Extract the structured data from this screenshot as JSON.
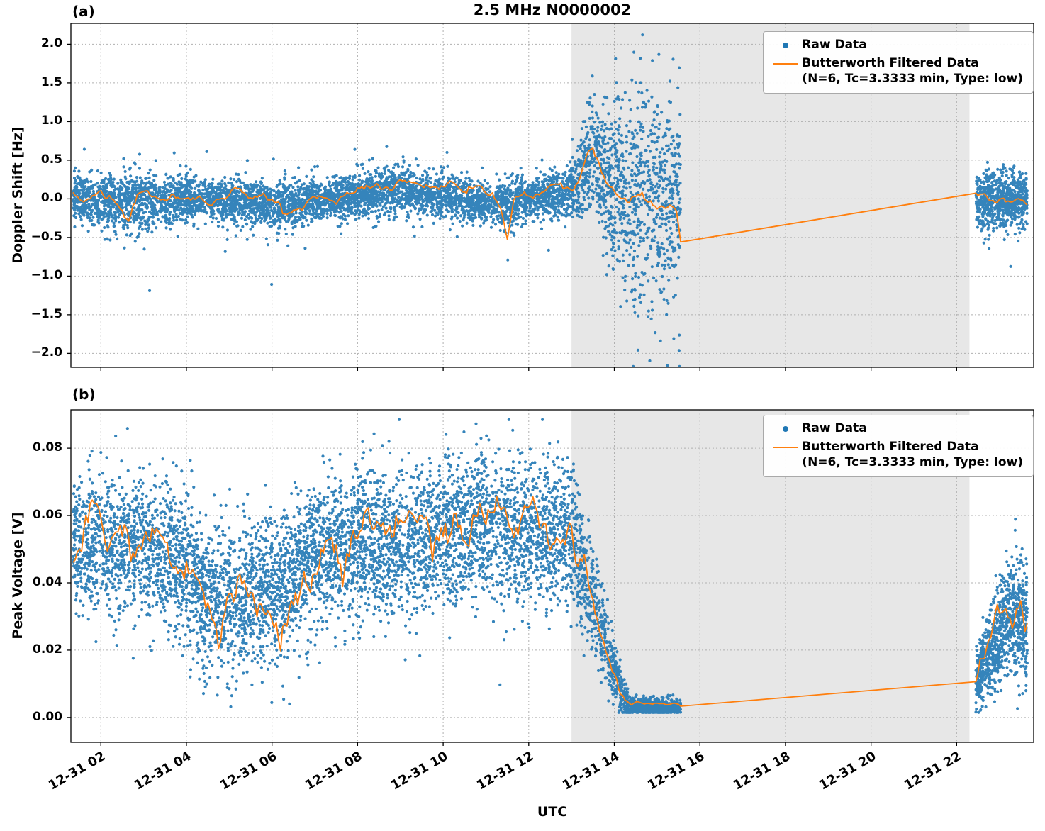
{
  "title": "2.5 MHz N0000002",
  "xlabel": "UTC",
  "colors": {
    "raw": "#1f77b4",
    "filtered": "#ff7f0e",
    "shade": "#e7e7e7",
    "grid": "#b0b0b0",
    "spine": "#000000"
  },
  "legend": {
    "raw_label": "Raw Data",
    "filtered_label": "Butterworth Filtered Data",
    "filtered_sub": "(N=6, Tc=3.3333 min, Type: low)"
  },
  "x_axis": {
    "range": [
      1.3,
      23.8
    ],
    "tick_times": [
      2,
      4,
      6,
      8,
      10,
      12,
      14,
      16,
      18,
      20,
      22
    ],
    "tick_labels": [
      "12-31 02",
      "12-31 04",
      "12-31 06",
      "12-31 08",
      "12-31 10",
      "12-31 12",
      "12-31 14",
      "12-31 16",
      "12-31 18",
      "12-31 20",
      "12-31 22"
    ]
  },
  "shade_span": [
    13.0,
    22.3
  ],
  "chart_data": [
    {
      "type": "scatter",
      "panel_label": "(a)",
      "ylabel": "Doppler Shift [Hz]",
      "ylim": [
        -2.18,
        2.27
      ],
      "clamp": [
        -2.17,
        2.26
      ],
      "yticks": [
        2.0,
        1.5,
        1.0,
        0.5,
        0.0,
        -0.5,
        -1.0,
        -1.5,
        -2.0
      ],
      "tick_decimals": 1,
      "raw": {
        "segments": [
          [
            1.35,
            15.55,
            6200
          ],
          [
            22.45,
            23.65,
            750
          ]
        ],
        "mean": [
          [
            1.35,
            0
          ],
          [
            2.6,
            -0.06
          ],
          [
            4,
            0
          ],
          [
            6.4,
            -0.07
          ],
          [
            7.5,
            0
          ],
          [
            8.8,
            0.1
          ],
          [
            10,
            0.04
          ],
          [
            11.45,
            -0.08
          ],
          [
            12.3,
            0.04
          ],
          [
            12.9,
            0.05
          ],
          [
            13.2,
            0.3
          ],
          [
            13.45,
            0.55
          ],
          [
            13.7,
            0.35
          ],
          [
            14,
            0.1
          ],
          [
            14.4,
            0
          ],
          [
            15.55,
            -0.05
          ],
          [
            22.45,
            0
          ],
          [
            23.65,
            -0.02
          ]
        ],
        "sigma": [
          [
            1.35,
            0.17
          ],
          [
            3,
            0.18
          ],
          [
            4.5,
            0.13
          ],
          [
            5.5,
            0.15
          ],
          [
            6.3,
            0.17
          ],
          [
            7.3,
            0.11
          ],
          [
            8,
            0.15
          ],
          [
            9,
            0.16
          ],
          [
            10,
            0.14
          ],
          [
            11,
            0.13
          ],
          [
            11.5,
            0.2
          ],
          [
            12,
            0.13
          ],
          [
            12.9,
            0.16
          ],
          [
            13.1,
            0.25
          ],
          [
            13.5,
            0.35
          ],
          [
            14,
            0.55
          ],
          [
            14.5,
            0.75
          ],
          [
            15.1,
            0.75
          ],
          [
            15.55,
            0.6
          ],
          [
            22.45,
            0.22
          ],
          [
            23,
            0.18
          ],
          [
            23.65,
            0.18
          ]
        ],
        "heavy_tail": true
      },
      "filtered": {
        "anchors": [
          [
            1.35,
            0.05
          ],
          [
            1.6,
            -0.03
          ],
          [
            1.9,
            0.06
          ],
          [
            2.2,
            0.02
          ],
          [
            2.45,
            -0.1
          ],
          [
            2.65,
            -0.27
          ],
          [
            2.85,
            -0.02
          ],
          [
            3.1,
            0.08
          ],
          [
            3.4,
            0.02
          ],
          [
            3.7,
            0.07
          ],
          [
            4.0,
            0.0
          ],
          [
            4.3,
            0.06
          ],
          [
            4.6,
            -0.02
          ],
          [
            4.9,
            0.05
          ],
          [
            5.2,
            0.1
          ],
          [
            5.5,
            0.03
          ],
          [
            5.8,
            0.08
          ],
          [
            6.1,
            -0.05
          ],
          [
            6.35,
            -0.18
          ],
          [
            6.6,
            -0.12
          ],
          [
            6.9,
            0.0
          ],
          [
            7.2,
            0.03
          ],
          [
            7.5,
            -0.02
          ],
          [
            7.8,
            0.08
          ],
          [
            8.1,
            0.16
          ],
          [
            8.4,
            0.22
          ],
          [
            8.7,
            0.15
          ],
          [
            9.0,
            0.2
          ],
          [
            9.3,
            0.26
          ],
          [
            9.6,
            0.16
          ],
          [
            9.9,
            0.12
          ],
          [
            10.2,
            0.2
          ],
          [
            10.5,
            0.12
          ],
          [
            10.8,
            0.16
          ],
          [
            11.1,
            0.06
          ],
          [
            11.35,
            -0.05
          ],
          [
            11.5,
            -0.42
          ],
          [
            11.65,
            0.05
          ],
          [
            11.9,
            0.12
          ],
          [
            12.2,
            0.06
          ],
          [
            12.5,
            0.14
          ],
          [
            12.8,
            0.08
          ],
          [
            13.0,
            0.15
          ],
          [
            13.2,
            0.4
          ],
          [
            13.35,
            0.62
          ],
          [
            13.5,
            0.72
          ],
          [
            13.65,
            0.5
          ],
          [
            13.85,
            0.25
          ],
          [
            14.05,
            0.1
          ],
          [
            14.3,
            -0.02
          ],
          [
            14.6,
            0.04
          ],
          [
            14.9,
            -0.04
          ],
          [
            15.2,
            -0.1
          ],
          [
            15.45,
            -0.3
          ],
          [
            15.55,
            -0.62
          ],
          [
            22.45,
            0.03
          ],
          [
            22.65,
            0.06
          ],
          [
            22.85,
            -0.02
          ],
          [
            23.05,
            0.04
          ],
          [
            23.25,
            -0.04
          ],
          [
            23.45,
            0.0
          ],
          [
            23.65,
            -0.08
          ]
        ],
        "wiggle_k": 0.3,
        "sigma_cap": 0.2
      }
    },
    {
      "type": "scatter",
      "panel_label": "(b)",
      "ylabel": "Peak Voltage [V]",
      "ylim": [
        -0.0074,
        0.0914
      ],
      "clamp": [
        0.0015,
        0.0885
      ],
      "yticks": [
        0.08,
        0.06,
        0.04,
        0.02,
        0.0
      ],
      "tick_decimals": 2,
      "raw": {
        "segments": [
          [
            1.35,
            15.55,
            6800
          ],
          [
            22.45,
            23.65,
            850
          ]
        ],
        "mean": [
          [
            1.35,
            0.05
          ],
          [
            2.0,
            0.052
          ],
          [
            2.8,
            0.05
          ],
          [
            3.6,
            0.048
          ],
          [
            4.2,
            0.04
          ],
          [
            4.8,
            0.034
          ],
          [
            5.4,
            0.036
          ],
          [
            6.0,
            0.038
          ],
          [
            6.6,
            0.044
          ],
          [
            7.2,
            0.05
          ],
          [
            8.0,
            0.052
          ],
          [
            8.8,
            0.05
          ],
          [
            9.6,
            0.053
          ],
          [
            10.4,
            0.055
          ],
          [
            10.9,
            0.059
          ],
          [
            11.4,
            0.054
          ],
          [
            12.0,
            0.055
          ],
          [
            12.6,
            0.054
          ],
          [
            13.0,
            0.053
          ],
          [
            13.4,
            0.04
          ],
          [
            13.8,
            0.022
          ],
          [
            14.1,
            0.01
          ],
          [
            14.35,
            0.0035
          ],
          [
            15.55,
            0.003
          ],
          [
            22.45,
            0.01
          ],
          [
            22.9,
            0.022
          ],
          [
            23.2,
            0.03
          ],
          [
            23.65,
            0.028
          ]
        ],
        "sigma": [
          [
            1.35,
            0.01
          ],
          [
            4.0,
            0.011
          ],
          [
            5.0,
            0.011
          ],
          [
            6.5,
            0.011
          ],
          [
            12.9,
            0.011
          ],
          [
            13.4,
            0.009
          ],
          [
            13.9,
            0.005
          ],
          [
            14.2,
            0.0025
          ],
          [
            14.4,
            0.0012
          ],
          [
            15.55,
            0.0012
          ],
          [
            22.45,
            0.004
          ],
          [
            22.9,
            0.008
          ],
          [
            23.65,
            0.009
          ]
        ],
        "heavy_tail": false
      },
      "filtered": {
        "anchors": [
          [
            1.35,
            0.05
          ],
          [
            1.8,
            0.056
          ],
          [
            2.2,
            0.048
          ],
          [
            2.6,
            0.055
          ],
          [
            3.0,
            0.05
          ],
          [
            3.4,
            0.052
          ],
          [
            3.8,
            0.046
          ],
          [
            4.2,
            0.04
          ],
          [
            4.6,
            0.034
          ],
          [
            5.0,
            0.037
          ],
          [
            5.4,
            0.033
          ],
          [
            5.8,
            0.04
          ],
          [
            6.2,
            0.037
          ],
          [
            6.6,
            0.044
          ],
          [
            7.0,
            0.049
          ],
          [
            7.4,
            0.052
          ],
          [
            7.8,
            0.049
          ],
          [
            8.2,
            0.054
          ],
          [
            8.6,
            0.048
          ],
          [
            9.0,
            0.053
          ],
          [
            9.4,
            0.055
          ],
          [
            9.8,
            0.052
          ],
          [
            10.2,
            0.056
          ],
          [
            10.6,
            0.055
          ],
          [
            10.9,
            0.068
          ],
          [
            11.2,
            0.053
          ],
          [
            11.6,
            0.056
          ],
          [
            12.0,
            0.053
          ],
          [
            12.4,
            0.057
          ],
          [
            12.8,
            0.052
          ],
          [
            13.0,
            0.055
          ],
          [
            13.3,
            0.046
          ],
          [
            13.6,
            0.03
          ],
          [
            13.9,
            0.018
          ],
          [
            14.1,
            0.01
          ],
          [
            14.35,
            0.004
          ],
          [
            14.8,
            0.0035
          ],
          [
            15.55,
            0.003
          ],
          [
            22.45,
            0.01
          ],
          [
            22.7,
            0.016
          ],
          [
            22.9,
            0.024
          ],
          [
            23.1,
            0.03
          ],
          [
            23.3,
            0.026
          ],
          [
            23.5,
            0.032
          ],
          [
            23.65,
            0.028
          ]
        ],
        "wiggle_k": 0.5,
        "sigma_cap": 0.012
      }
    }
  ]
}
